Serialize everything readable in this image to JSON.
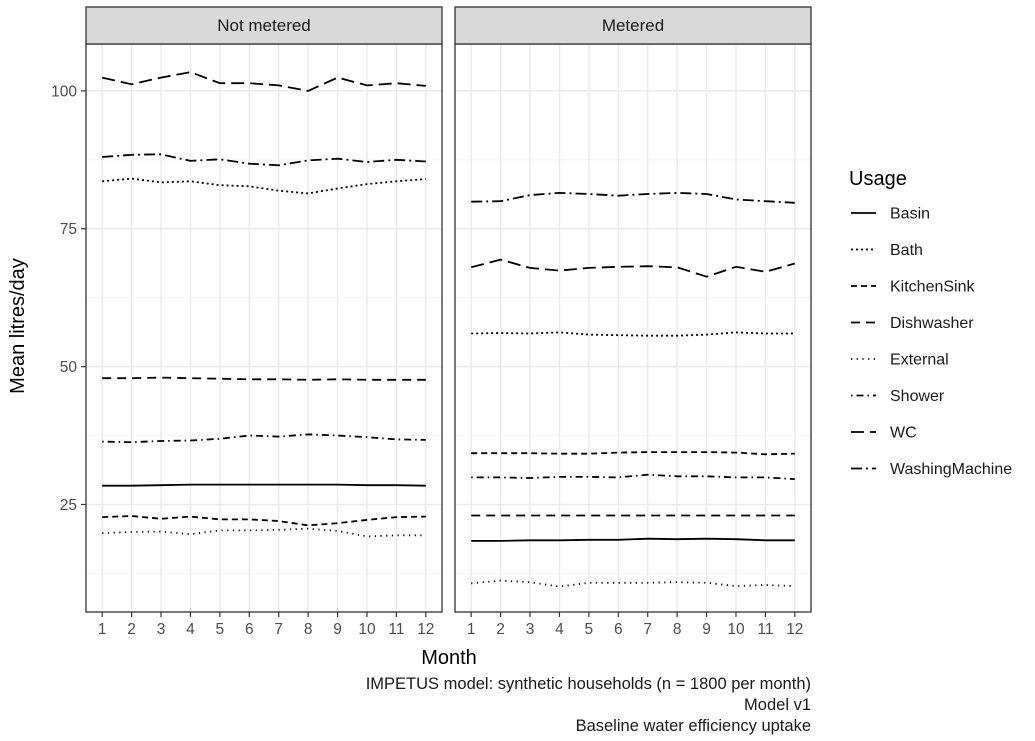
{
  "chart_data": {
    "type": "line",
    "xlabel": "Month",
    "ylabel": "Mean litres/day",
    "x": [
      1,
      2,
      3,
      4,
      5,
      6,
      7,
      8,
      9,
      10,
      11,
      12
    ],
    "x_ticks": [
      "1",
      "2",
      "3",
      "4",
      "5",
      "6",
      "7",
      "8",
      "9",
      "10",
      "11",
      "12"
    ],
    "y_ticks": [
      25,
      50,
      75,
      100
    ],
    "ylim": [
      5.5,
      108.5
    ],
    "grid": true,
    "legend": {
      "title": "Usage",
      "placement": "right",
      "entries": [
        "Basin",
        "Bath",
        "KitchenSink",
        "Dishwasher",
        "External",
        "Shower",
        "WC",
        "WashingMachine"
      ]
    },
    "facets": [
      {
        "label": "Not metered",
        "series": [
          {
            "name": "Basin",
            "values": [
              28.4,
              28.4,
              28.5,
              28.6,
              28.6,
              28.6,
              28.6,
              28.6,
              28.6,
              28.5,
              28.5,
              28.4
            ]
          },
          {
            "name": "Bath",
            "values": [
              83.6,
              84.1,
              83.4,
              83.6,
              82.9,
              82.7,
              81.9,
              81.4,
              82.3,
              83.1,
              83.6,
              84.0
            ]
          },
          {
            "name": "KitchenSink",
            "values": [
              22.7,
              22.9,
              22.4,
              22.8,
              22.3,
              22.3,
              22.0,
              21.2,
              21.6,
              22.2,
              22.7,
              22.8
            ]
          },
          {
            "name": "Dishwasher",
            "values": [
              47.9,
              47.9,
              48.0,
              47.9,
              47.8,
              47.7,
              47.7,
              47.6,
              47.7,
              47.6,
              47.6,
              47.6
            ]
          },
          {
            "name": "External",
            "values": [
              19.8,
              20.0,
              20.1,
              19.6,
              20.3,
              20.3,
              20.4,
              20.6,
              20.2,
              19.2,
              19.4,
              19.4
            ]
          },
          {
            "name": "Shower",
            "values": [
              36.4,
              36.3,
              36.5,
              36.6,
              36.9,
              37.5,
              37.3,
              37.7,
              37.5,
              37.2,
              36.8,
              36.7
            ]
          },
          {
            "name": "WC",
            "values": [
              102.4,
              101.2,
              102.4,
              103.4,
              101.4,
              101.4,
              101.0,
              100.0,
              102.4,
              101.0,
              101.4,
              100.9
            ]
          },
          {
            "name": "WashingMachine",
            "values": [
              88.0,
              88.4,
              88.5,
              87.3,
              87.6,
              86.8,
              86.5,
              87.4,
              87.7,
              87.1,
              87.5,
              87.2
            ]
          }
        ]
      },
      {
        "label": "Metered",
        "series": [
          {
            "name": "Basin",
            "values": [
              18.4,
              18.4,
              18.5,
              18.5,
              18.6,
              18.6,
              18.8,
              18.7,
              18.8,
              18.7,
              18.5,
              18.5
            ]
          },
          {
            "name": "Bath",
            "values": [
              56.0,
              56.1,
              56.0,
              56.2,
              55.8,
              55.7,
              55.6,
              55.6,
              55.8,
              56.2,
              56.0,
              56.0
            ]
          },
          {
            "name": "KitchenSink",
            "values": [
              34.3,
              34.3,
              34.3,
              34.2,
              34.2,
              34.4,
              34.5,
              34.5,
              34.5,
              34.4,
              34.1,
              34.2
            ]
          },
          {
            "name": "Dishwasher",
            "values": [
              23.0,
              23.0,
              23.0,
              23.0,
              23.0,
              23.0,
              23.0,
              23.0,
              23.0,
              23.0,
              23.0,
              23.0
            ]
          },
          {
            "name": "External",
            "values": [
              10.7,
              11.2,
              10.9,
              10.1,
              10.8,
              10.8,
              10.8,
              10.9,
              10.8,
              10.2,
              10.4,
              10.2
            ]
          },
          {
            "name": "Shower",
            "values": [
              29.9,
              29.9,
              29.8,
              30.0,
              30.0,
              29.9,
              30.4,
              30.1,
              30.1,
              29.9,
              29.9,
              29.6
            ]
          },
          {
            "name": "WC",
            "values": [
              68.0,
              69.4,
              67.9,
              67.4,
              67.9,
              68.1,
              68.2,
              68.0,
              66.3,
              68.1,
              67.2,
              68.7
            ]
          },
          {
            "name": "WashingMachine",
            "values": [
              79.9,
              80.0,
              81.1,
              81.5,
              81.3,
              81.0,
              81.3,
              81.5,
              81.3,
              80.3,
              80.0,
              79.7
            ]
          }
        ]
      }
    ],
    "line_styles": {
      "Basin": "solid",
      "Bath": "dotted-dense",
      "KitchenSink": "dashed-short",
      "Dishwasher": "dashed",
      "External": "dotted",
      "Shower": "dot-dash",
      "WC": "long-dash",
      "WashingMachine": "two-dash"
    },
    "colors": {
      "panel_border": "#333333",
      "strip_fill": "#d9d9d9",
      "grid_major": "#ebebeb",
      "grid_minor": "#f5f5f5",
      "line": "#000000",
      "text": "#1a1a1a"
    }
  },
  "caption": {
    "line1": "IMPETUS model: synthetic households (n = 1800 per month)",
    "line2": "Model v1",
    "line3": "Baseline water efficiency uptake"
  }
}
